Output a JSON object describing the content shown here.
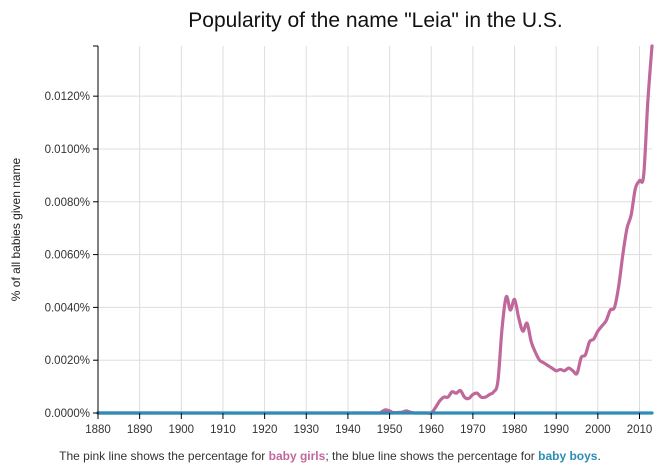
{
  "chart_data": {
    "type": "line",
    "title": "Popularity of the name \"Leia\" in the U.S.",
    "ylabel": "% of all babies given name",
    "xlim": [
      1880,
      2013
    ],
    "ylim": [
      0,
      0.0139
    ],
    "x_ticks": [
      1880,
      1890,
      1900,
      1910,
      1920,
      1930,
      1940,
      1950,
      1960,
      1970,
      1980,
      1990,
      2000,
      2010
    ],
    "y_ticks": [
      0,
      0.002,
      0.004,
      0.006,
      0.008,
      0.01,
      0.012
    ],
    "y_tick_labels": [
      "0.0000%",
      "0.0020%",
      "0.0040%",
      "0.0060%",
      "0.0080%",
      "0.0100%",
      "0.0120%"
    ],
    "grid": true,
    "series": [
      {
        "key": "girls",
        "color": "#c0689b",
        "x": [
          1880,
          1947,
          1948,
          1949,
          1950,
          1951,
          1952,
          1953,
          1954,
          1955,
          1956,
          1957,
          1958,
          1959,
          1960,
          1961,
          1962,
          1963,
          1964,
          1965,
          1966,
          1967,
          1968,
          1969,
          1970,
          1971,
          1972,
          1973,
          1974,
          1975,
          1976,
          1977,
          1978,
          1979,
          1980,
          1981,
          1982,
          1983,
          1984,
          1985,
          1986,
          1987,
          1988,
          1989,
          1990,
          1991,
          1992,
          1993,
          1994,
          1995,
          1996,
          1997,
          1998,
          1999,
          2000,
          2001,
          2002,
          2003,
          2004,
          2005,
          2006,
          2007,
          2008,
          2009,
          2010,
          2011,
          2012,
          2013
        ],
        "values": [
          0,
          0,
          4e-05,
          0.00012,
          8e-05,
          0,
          2e-05,
          3e-05,
          8e-05,
          3e-05,
          0,
          0,
          0,
          0,
          0,
          0.0002,
          0.00045,
          0.0006,
          0.0006,
          0.0008,
          0.00075,
          0.00085,
          0.0006,
          0.00055,
          0.0007,
          0.00075,
          0.0006,
          0.0006,
          0.0007,
          0.0008,
          0.0012,
          0.0032,
          0.0044,
          0.0039,
          0.0043,
          0.0036,
          0.0031,
          0.0034,
          0.0027,
          0.0023,
          0.002,
          0.0019,
          0.0018,
          0.0017,
          0.0016,
          0.00165,
          0.0016,
          0.0017,
          0.0016,
          0.0015,
          0.0021,
          0.0022,
          0.0027,
          0.0028,
          0.0031,
          0.0033,
          0.0035,
          0.0039,
          0.004,
          0.0048,
          0.006,
          0.007,
          0.0075,
          0.0085,
          0.0088,
          0.009,
          0.0118,
          0.0139
        ]
      },
      {
        "key": "boys",
        "color": "#2e8db4",
        "x": [
          1880,
          2013
        ],
        "values": [
          0,
          0
        ]
      }
    ]
  },
  "caption": {
    "prefix": "The pink line shows the percentage for ",
    "girls": "baby girls",
    "middle": "; the blue line shows the percentage for ",
    "boys": "baby boys",
    "suffix": "."
  }
}
